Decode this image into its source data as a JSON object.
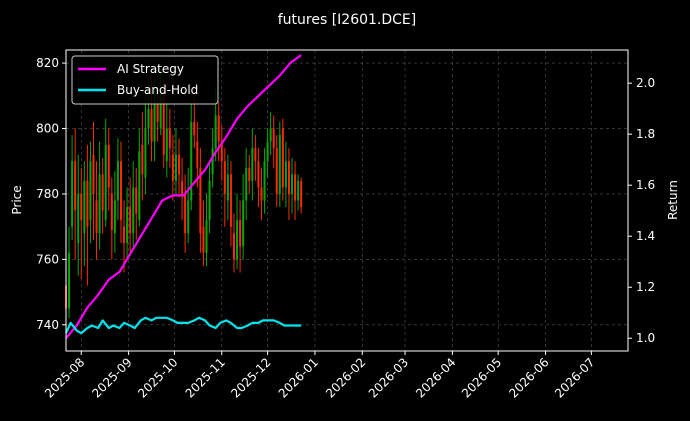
{
  "chart_data": {
    "type": "line",
    "title": "futures [I2601.DCE]",
    "x_axis": {
      "range": [
        "2025-07-22",
        "2026-07-25"
      ],
      "ticks": [
        "2025-08",
        "2025-09",
        "2025-10",
        "2025-11",
        "2025-12",
        "2026-01",
        "2026-02",
        "2026-03",
        "2026-04",
        "2026-05",
        "2026-06",
        "2026-07"
      ]
    },
    "y_left": {
      "label": "Price",
      "ylim": [
        732,
        824
      ],
      "ticks": [
        740,
        760,
        780,
        800,
        820
      ]
    },
    "y_right": {
      "label": "Return",
      "ylim": [
        0.95,
        2.13
      ],
      "ticks": [
        "1.0",
        "1.2",
        "1.4",
        "1.6",
        "1.8",
        "2.0"
      ]
    },
    "grid": true,
    "legend_position": "top-left",
    "background": "#000000",
    "colors": {
      "up_candle": "#00aa00",
      "down_candle": "#ff2a00",
      "ai_strategy": "#ff00ff",
      "buy_and_hold": "#00e5ee",
      "grid": "#555555",
      "axes": "#ffffff"
    },
    "series": [
      {
        "name": "AI Strategy",
        "axis": "right",
        "points": [
          [
            "2025-07-22",
            1.0
          ],
          [
            "2025-07-29",
            1.05
          ],
          [
            "2025-08-05",
            1.12
          ],
          [
            "2025-08-12",
            1.17
          ],
          [
            "2025-08-19",
            1.23
          ],
          [
            "2025-08-26",
            1.26
          ],
          [
            "2025-09-02",
            1.33
          ],
          [
            "2025-09-09",
            1.4
          ],
          [
            "2025-09-16",
            1.47
          ],
          [
            "2025-09-23",
            1.54
          ],
          [
            "2025-09-30",
            1.56
          ],
          [
            "2025-10-07",
            1.56
          ],
          [
            "2025-10-14",
            1.61
          ],
          [
            "2025-10-21",
            1.66
          ],
          [
            "2025-10-28",
            1.73
          ],
          [
            "2025-11-04",
            1.79
          ],
          [
            "2025-11-11",
            1.86
          ],
          [
            "2025-11-18",
            1.91
          ],
          [
            "2025-11-25",
            1.95
          ],
          [
            "2025-12-02",
            1.99
          ],
          [
            "2025-12-09",
            2.03
          ],
          [
            "2025-12-16",
            2.08
          ],
          [
            "2025-12-23",
            2.11
          ]
        ]
      },
      {
        "name": "Buy-and-Hold",
        "axis": "right",
        "points": [
          [
            "2025-07-22",
            1.02
          ],
          [
            "2025-07-25",
            1.06
          ],
          [
            "2025-07-29",
            1.03
          ],
          [
            "2025-08-01",
            1.02
          ],
          [
            "2025-08-05",
            1.04
          ],
          [
            "2025-08-08",
            1.05
          ],
          [
            "2025-08-12",
            1.04
          ],
          [
            "2025-08-15",
            1.07
          ],
          [
            "2025-08-19",
            1.04
          ],
          [
            "2025-08-22",
            1.05
          ],
          [
            "2025-08-26",
            1.04
          ],
          [
            "2025-08-29",
            1.06
          ],
          [
            "2025-09-02",
            1.05
          ],
          [
            "2025-09-05",
            1.04
          ],
          [
            "2025-09-09",
            1.07
          ],
          [
            "2025-09-12",
            1.08
          ],
          [
            "2025-09-16",
            1.07
          ],
          [
            "2025-09-19",
            1.08
          ],
          [
            "2025-09-23",
            1.08
          ],
          [
            "2025-09-26",
            1.08
          ],
          [
            "2025-09-30",
            1.07
          ],
          [
            "2025-10-03",
            1.06
          ],
          [
            "2025-10-07",
            1.06
          ],
          [
            "2025-10-10",
            1.06
          ],
          [
            "2025-10-14",
            1.07
          ],
          [
            "2025-10-17",
            1.08
          ],
          [
            "2025-10-21",
            1.07
          ],
          [
            "2025-10-24",
            1.05
          ],
          [
            "2025-10-28",
            1.04
          ],
          [
            "2025-10-31",
            1.06
          ],
          [
            "2025-11-04",
            1.07
          ],
          [
            "2025-11-07",
            1.06
          ],
          [
            "2025-11-11",
            1.04
          ],
          [
            "2025-11-14",
            1.04
          ],
          [
            "2025-11-18",
            1.05
          ],
          [
            "2025-11-21",
            1.06
          ],
          [
            "2025-11-25",
            1.06
          ],
          [
            "2025-11-28",
            1.07
          ],
          [
            "2025-12-02",
            1.07
          ],
          [
            "2025-12-05",
            1.07
          ],
          [
            "2025-12-09",
            1.06
          ],
          [
            "2025-12-12",
            1.05
          ],
          [
            "2025-12-16",
            1.05
          ],
          [
            "2025-12-19",
            1.05
          ],
          [
            "2025-12-23",
            1.05
          ]
        ]
      }
    ],
    "candles": [
      [
        "2025-07-22",
        752,
        745,
        758,
        740
      ],
      [
        "2025-07-24",
        745,
        762,
        770,
        742
      ],
      [
        "2025-07-26",
        770,
        790,
        798,
        766
      ],
      [
        "2025-07-28",
        790,
        775,
        800,
        760
      ],
      [
        "2025-07-30",
        765,
        780,
        792,
        755
      ],
      [
        "2025-08-01",
        780,
        772,
        788,
        754
      ],
      [
        "2025-08-03",
        768,
        784,
        790,
        758
      ],
      [
        "2025-08-05",
        784,
        770,
        795,
        752
      ],
      [
        "2025-08-07",
        772,
        790,
        796,
        765
      ],
      [
        "2025-08-09",
        792,
        780,
        802,
        766
      ],
      [
        "2025-08-11",
        778,
        768,
        790,
        760
      ],
      [
        "2025-08-13",
        768,
        786,
        796,
        763
      ],
      [
        "2025-08-15",
        786,
        775,
        791,
        768
      ],
      [
        "2025-08-17",
        772,
        795,
        803,
        770
      ],
      [
        "2025-08-19",
        795,
        782,
        800,
        775
      ],
      [
        "2025-08-21",
        780,
        769,
        785,
        760
      ],
      [
        "2025-08-23",
        768,
        778,
        787,
        762
      ],
      [
        "2025-08-25",
        778,
        790,
        797,
        772
      ],
      [
        "2025-08-27",
        790,
        772,
        796,
        765
      ],
      [
        "2025-08-29",
        770,
        765,
        778,
        756
      ],
      [
        "2025-08-31",
        765,
        776,
        782,
        760
      ],
      [
        "2025-09-02",
        776,
        768,
        785,
        762
      ],
      [
        "2025-09-04",
        768,
        782,
        790,
        764
      ],
      [
        "2025-09-06",
        782,
        774,
        788,
        766
      ],
      [
        "2025-09-08",
        772,
        793,
        800,
        770
      ],
      [
        "2025-09-10",
        795,
        786,
        805,
        778
      ],
      [
        "2025-09-12",
        785,
        800,
        810,
        780
      ],
      [
        "2025-09-14",
        800,
        806,
        814,
        795
      ],
      [
        "2025-09-16",
        806,
        796,
        816,
        790
      ],
      [
        "2025-09-18",
        796,
        808,
        815,
        790
      ],
      [
        "2025-09-20",
        808,
        802,
        812,
        796
      ],
      [
        "2025-09-22",
        800,
        812,
        818,
        798
      ],
      [
        "2025-09-24",
        812,
        792,
        815,
        788
      ],
      [
        "2025-09-26",
        790,
        800,
        808,
        785
      ],
      [
        "2025-09-28",
        800,
        794,
        806,
        788
      ],
      [
        "2025-09-30",
        792,
        784,
        798,
        778
      ],
      [
        "2025-10-02",
        784,
        792,
        800,
        780
      ],
      [
        "2025-10-04",
        792,
        786,
        797,
        779
      ],
      [
        "2025-10-06",
        784,
        780,
        791,
        772
      ],
      [
        "2025-10-08",
        780,
        768,
        786,
        762
      ],
      [
        "2025-10-10",
        768,
        778,
        788,
        765
      ],
      [
        "2025-10-12",
        778,
        802,
        808,
        775
      ],
      [
        "2025-10-14",
        802,
        798,
        812,
        794
      ],
      [
        "2025-10-16",
        796,
        788,
        802,
        782
      ],
      [
        "2025-10-18",
        788,
        768,
        794,
        762
      ],
      [
        "2025-10-20",
        770,
        762,
        778,
        758
      ],
      [
        "2025-10-22",
        762,
        772,
        780,
        758
      ],
      [
        "2025-10-24",
        772,
        784,
        790,
        768
      ],
      [
        "2025-10-26",
        786,
        794,
        800,
        782
      ],
      [
        "2025-10-28",
        794,
        804,
        812,
        790
      ],
      [
        "2025-10-30",
        804,
        796,
        808,
        790
      ],
      [
        "2025-11-01",
        796,
        790,
        801,
        784
      ],
      [
        "2025-11-03",
        790,
        780,
        794,
        770
      ],
      [
        "2025-11-05",
        778,
        786,
        792,
        772
      ],
      [
        "2025-11-07",
        786,
        770,
        790,
        764
      ],
      [
        "2025-11-09",
        768,
        760,
        774,
        756
      ],
      [
        "2025-11-11",
        760,
        772,
        780,
        757
      ],
      [
        "2025-11-13",
        772,
        764,
        778,
        756
      ],
      [
        "2025-11-15",
        764,
        778,
        786,
        760
      ],
      [
        "2025-11-17",
        778,
        788,
        794,
        772
      ],
      [
        "2025-11-19",
        788,
        784,
        792,
        780
      ],
      [
        "2025-11-21",
        784,
        794,
        800,
        778
      ],
      [
        "2025-11-23",
        794,
        790,
        798,
        784
      ],
      [
        "2025-11-25",
        790,
        782,
        794,
        776
      ],
      [
        "2025-11-27",
        782,
        778,
        788,
        772
      ],
      [
        "2025-11-29",
        778,
        790,
        794,
        774
      ],
      [
        "2025-12-01",
        790,
        796,
        800,
        785
      ],
      [
        "2025-12-03",
        796,
        800,
        805,
        792
      ],
      [
        "2025-12-05",
        800,
        794,
        804,
        788
      ],
      [
        "2025-12-07",
        794,
        780,
        798,
        776
      ],
      [
        "2025-12-09",
        780,
        798,
        802,
        776
      ],
      [
        "2025-12-11",
        800,
        782,
        803,
        778
      ],
      [
        "2025-12-13",
        782,
        790,
        796,
        776
      ],
      [
        "2025-12-15",
        790,
        780,
        794,
        772
      ],
      [
        "2025-12-17",
        780,
        786,
        791,
        774
      ],
      [
        "2025-12-19",
        786,
        778,
        790,
        772
      ],
      [
        "2025-12-21",
        778,
        784,
        786,
        775
      ],
      [
        "2025-12-23",
        784,
        776,
        785,
        774
      ]
    ]
  }
}
